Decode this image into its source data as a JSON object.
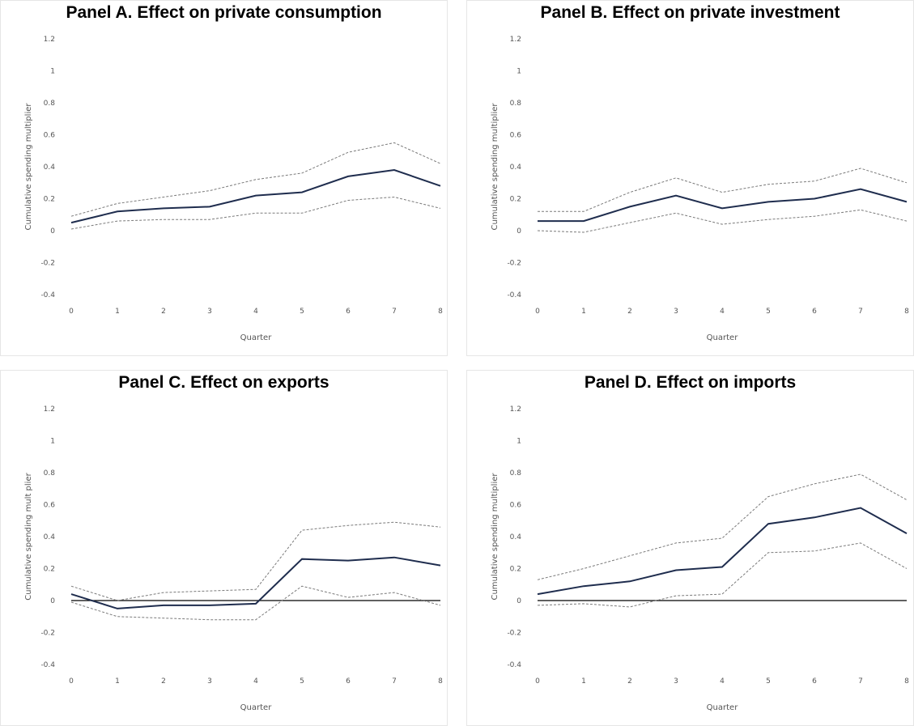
{
  "chart_data": [
    {
      "type": "line",
      "title": "Panel A. Effect on private consumption",
      "xlabel": "Quarter",
      "ylabel": "Cumulative spending multiplier",
      "ylim": [
        -0.4,
        1.2
      ],
      "x": [
        0,
        1,
        2,
        3,
        4,
        5,
        6,
        7,
        8
      ],
      "yticks": [
        "1.2",
        "1",
        "0.8",
        "0.6",
        "0.4",
        "0.2",
        "0",
        "-0.2",
        "-0.4"
      ],
      "zero_line": false,
      "series": [
        {
          "role": "estimate",
          "values": [
            0.05,
            0.12,
            0.14,
            0.15,
            0.22,
            0.24,
            0.34,
            0.38,
            0.28
          ]
        },
        {
          "role": "upper",
          "values": [
            0.09,
            0.17,
            0.21,
            0.25,
            0.32,
            0.36,
            0.49,
            0.55,
            0.42
          ]
        },
        {
          "role": "lower",
          "values": [
            0.01,
            0.06,
            0.07,
            0.07,
            0.11,
            0.11,
            0.19,
            0.21,
            0.14
          ]
        }
      ]
    },
    {
      "type": "line",
      "title": "Panel B. Effect on private investment",
      "xlabel": "Quarter",
      "ylabel": "Cumulative spending multiplier",
      "ylim": [
        -0.4,
        1.2
      ],
      "x": [
        0,
        1,
        2,
        3,
        4,
        5,
        6,
        7,
        8
      ],
      "yticks": [
        "1.2",
        "1",
        "0.8",
        "0.6",
        "0.4",
        "0.2",
        "0",
        "-0.2",
        "-0.4"
      ],
      "zero_line": false,
      "series": [
        {
          "role": "estimate",
          "values": [
            0.06,
            0.06,
            0.15,
            0.22,
            0.14,
            0.18,
            0.2,
            0.26,
            0.18
          ]
        },
        {
          "role": "upper",
          "values": [
            0.12,
            0.12,
            0.24,
            0.33,
            0.24,
            0.29,
            0.31,
            0.39,
            0.3
          ]
        },
        {
          "role": "lower",
          "values": [
            0.0,
            -0.01,
            0.05,
            0.11,
            0.04,
            0.07,
            0.09,
            0.13,
            0.06
          ]
        }
      ]
    },
    {
      "type": "line",
      "title": "Panel C. Effect on exports",
      "xlabel": "Quarter",
      "ylabel": "Cumulative spending mult plier",
      "ylim": [
        -0.4,
        1.2
      ],
      "x": [
        0,
        1,
        2,
        3,
        4,
        5,
        6,
        7,
        8
      ],
      "yticks": [
        "1.2",
        "1",
        "0.8",
        "0.6",
        "0.4",
        "0.2",
        "0",
        "-0.2",
        "-0.4"
      ],
      "zero_line": true,
      "series": [
        {
          "role": "estimate",
          "values": [
            0.04,
            -0.05,
            -0.03,
            -0.03,
            -0.02,
            0.26,
            0.25,
            0.27,
            0.22
          ]
        },
        {
          "role": "upper",
          "values": [
            0.09,
            0.0,
            0.05,
            0.06,
            0.07,
            0.44,
            0.47,
            0.49,
            0.46
          ]
        },
        {
          "role": "lower",
          "values": [
            -0.01,
            -0.1,
            -0.11,
            -0.12,
            -0.12,
            0.09,
            0.02,
            0.05,
            -0.03
          ]
        }
      ]
    },
    {
      "type": "line",
      "title": "Panel D. Effect on imports",
      "xlabel": "Quarter",
      "ylabel": "Cumulative spending multiplier",
      "ylim": [
        -0.4,
        1.2
      ],
      "x": [
        0,
        1,
        2,
        3,
        4,
        5,
        6,
        7,
        8
      ],
      "yticks": [
        "1.2",
        "1",
        "0.8",
        "0.6",
        "0.4",
        "0.2",
        "0",
        "-0.2",
        "-0.4"
      ],
      "zero_line": true,
      "series": [
        {
          "role": "estimate",
          "values": [
            0.04,
            0.09,
            0.12,
            0.19,
            0.21,
            0.48,
            0.52,
            0.58,
            0.42
          ]
        },
        {
          "role": "upper",
          "values": [
            0.13,
            0.2,
            0.28,
            0.36,
            0.39,
            0.65,
            0.73,
            0.79,
            0.63
          ]
        },
        {
          "role": "lower",
          "values": [
            -0.03,
            -0.02,
            -0.04,
            0.03,
            0.04,
            0.3,
            0.31,
            0.36,
            0.2
          ]
        }
      ]
    }
  ]
}
